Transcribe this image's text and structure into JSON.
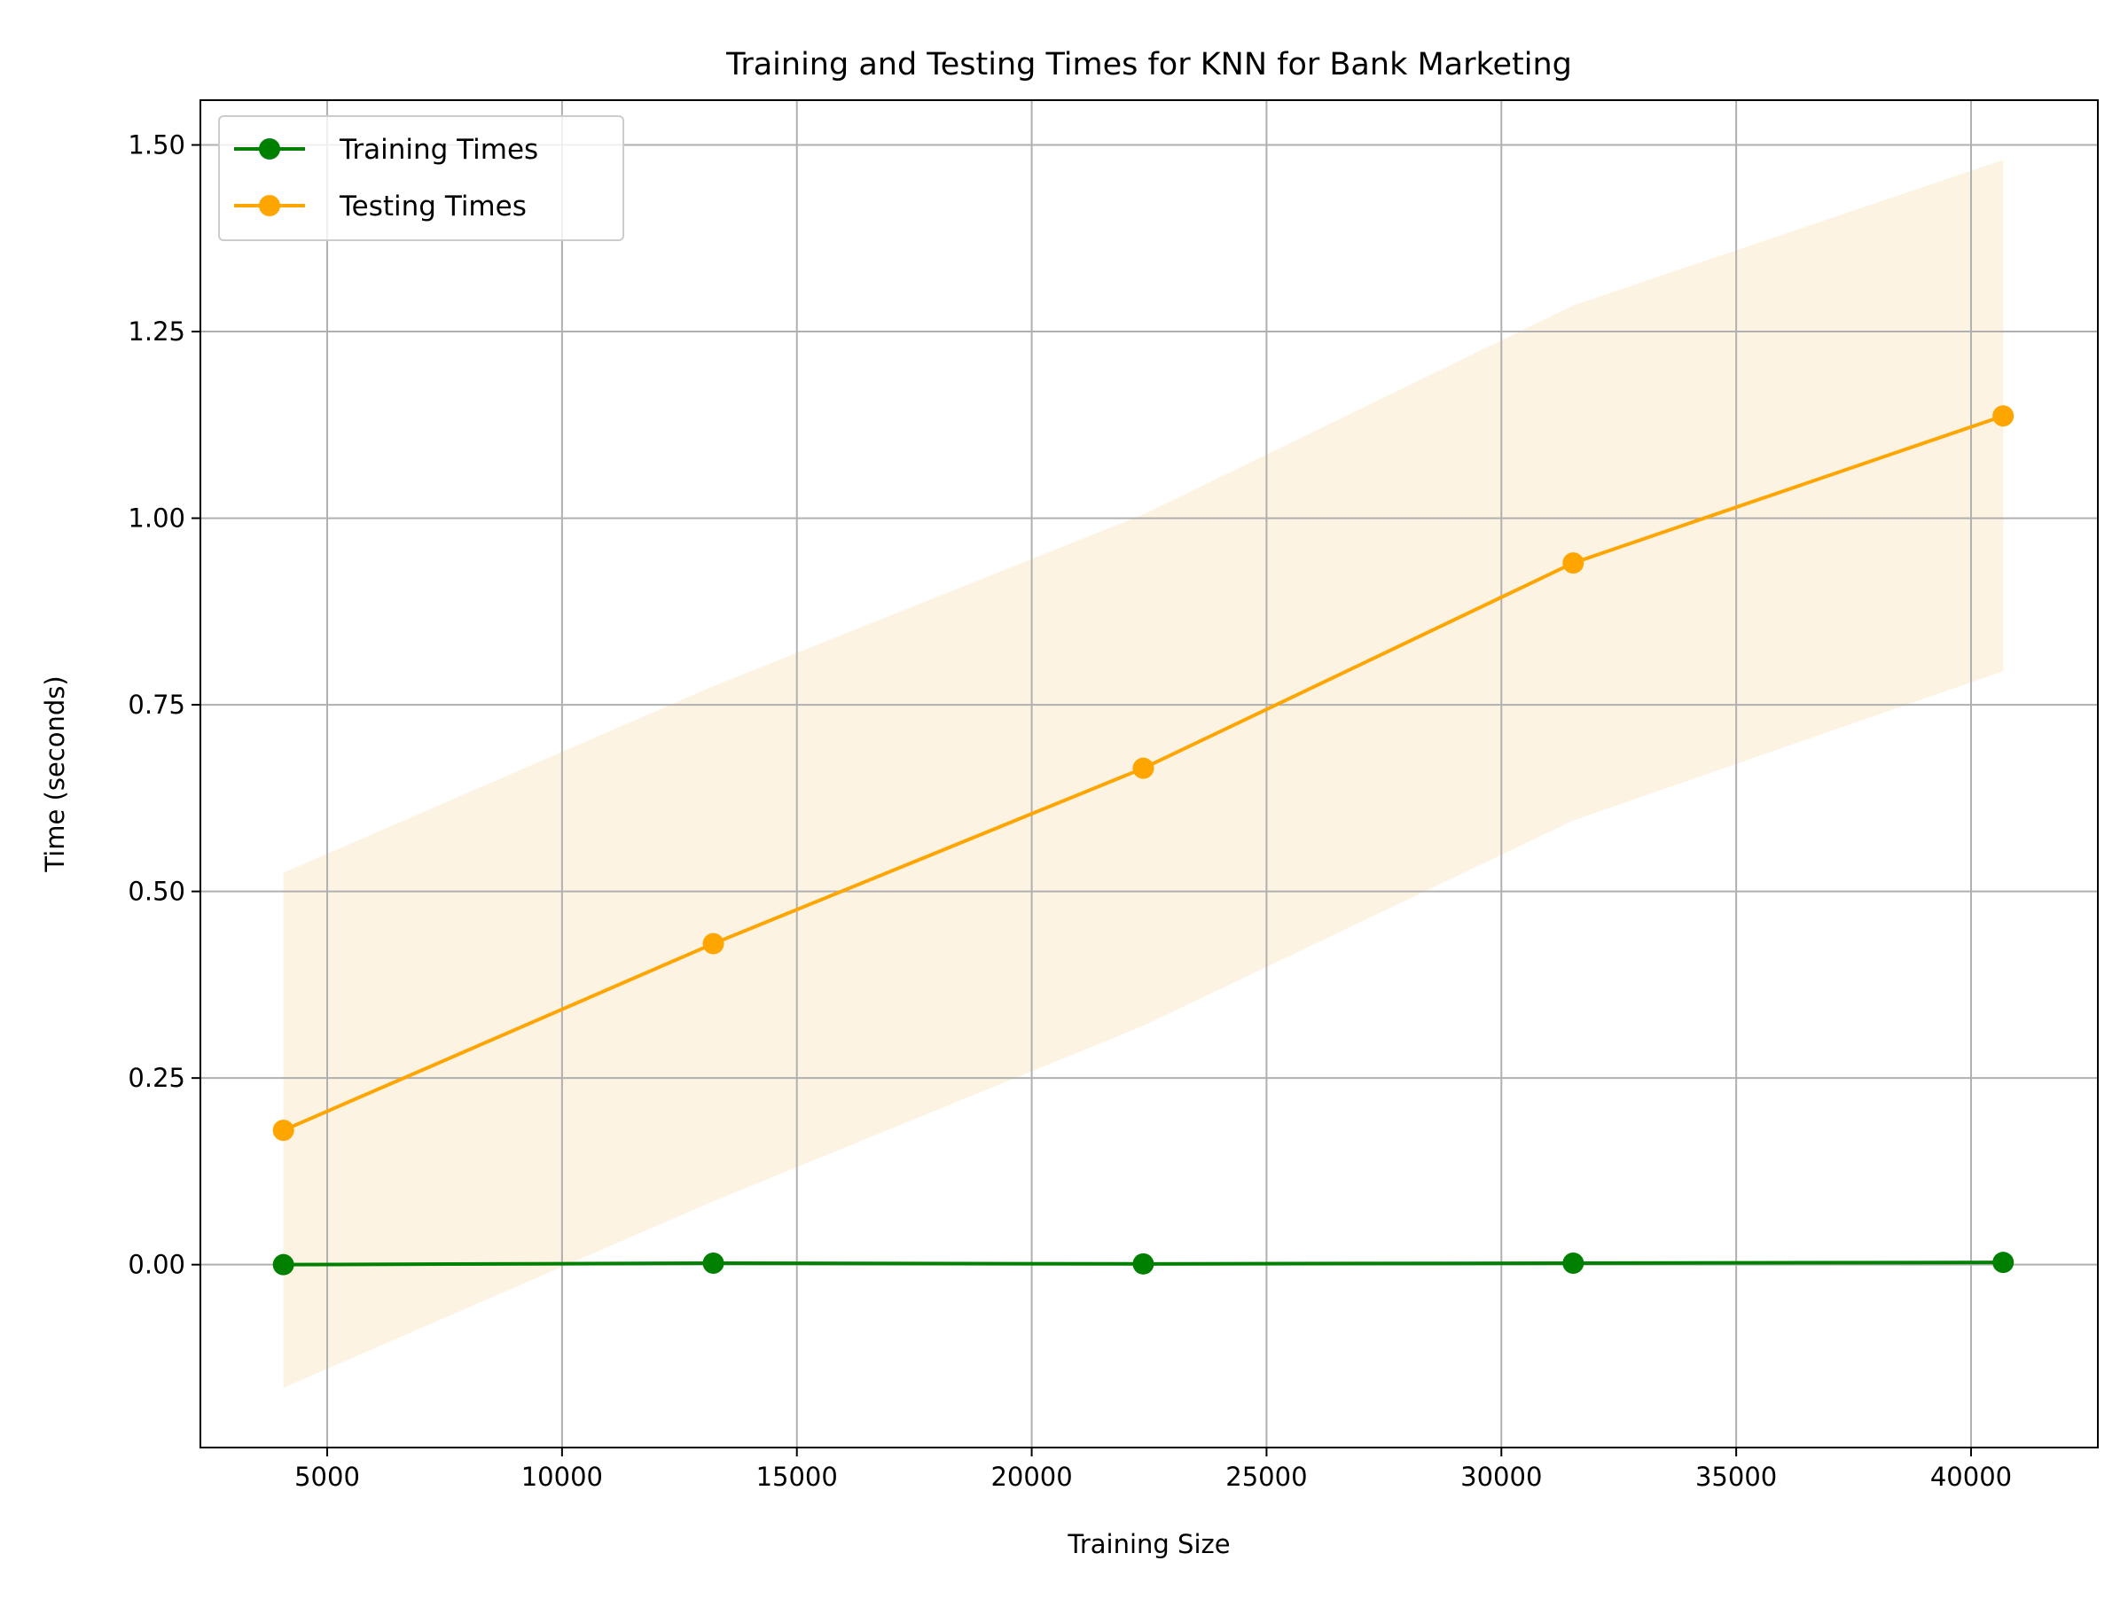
{
  "chart_data": {
    "type": "line",
    "title": "Training and Testing Times for KNN for Bank Marketing",
    "xlabel": "Training Size",
    "ylabel": "Time (seconds)",
    "xlim": [
      2300,
      42700
    ],
    "ylim": [
      -0.245,
      1.56
    ],
    "xticks": [
      5000,
      10000,
      15000,
      20000,
      25000,
      30000,
      35000,
      40000
    ],
    "yticks": [
      0.0,
      0.25,
      0.5,
      0.75,
      1.0,
      1.25,
      1.5
    ],
    "grid": true,
    "legend_position": "top-left",
    "x": [
      4068,
      13222,
      22376,
      31530,
      40684
    ],
    "series": [
      {
        "name": "Training Times",
        "color": "#008000",
        "values": [
          0.0,
          0.002,
          0.001,
          0.002,
          0.003
        ],
        "band_lower": [
          0.0,
          0.002,
          0.001,
          0.002,
          0.003
        ],
        "band_upper": [
          0.0,
          0.002,
          0.001,
          0.002,
          0.003
        ]
      },
      {
        "name": "Testing Times",
        "color": "#ffa500",
        "band_color": "#fdf3e2",
        "values": [
          0.18,
          0.43,
          0.665,
          0.94,
          1.137
        ],
        "band_lower": [
          -0.165,
          0.085,
          0.32,
          0.595,
          0.795
        ],
        "band_upper": [
          0.525,
          0.775,
          1.005,
          1.285,
          1.48
        ]
      }
    ]
  }
}
